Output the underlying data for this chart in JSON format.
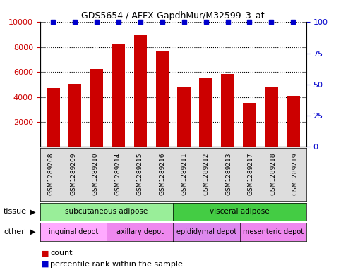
{
  "title": "GDS5654 / AFFX-GapdhMur/M32599_3_at",
  "samples": [
    "GSM1289208",
    "GSM1289209",
    "GSM1289210",
    "GSM1289214",
    "GSM1289215",
    "GSM1289216",
    "GSM1289211",
    "GSM1289212",
    "GSM1289213",
    "GSM1289217",
    "GSM1289218",
    "GSM1289219"
  ],
  "counts": [
    4700,
    5050,
    6250,
    8250,
    9000,
    7650,
    4750,
    5500,
    5850,
    3500,
    4850,
    4100
  ],
  "percentiles": [
    100,
    100,
    100,
    100,
    100,
    100,
    100,
    100,
    100,
    100,
    100,
    100
  ],
  "ylim_left": [
    0,
    10000
  ],
  "ylim_right": [
    0,
    100
  ],
  "yticks_left": [
    2000,
    4000,
    6000,
    8000,
    10000
  ],
  "yticks_right": [
    0,
    25,
    50,
    75,
    100
  ],
  "bar_color": "#cc0000",
  "dot_color": "#0000cc",
  "tissue_groups": [
    {
      "label": "subcutaneous adipose",
      "start": 0,
      "end": 6,
      "color": "#99ee99"
    },
    {
      "label": "visceral adipose",
      "start": 6,
      "end": 12,
      "color": "#44cc44"
    }
  ],
  "other_groups": [
    {
      "label": "inguinal depot",
      "start": 0,
      "end": 3,
      "color": "#ffaaff"
    },
    {
      "label": "axillary depot",
      "start": 3,
      "end": 6,
      "color": "#ee88ee"
    },
    {
      "label": "epididymal depot",
      "start": 6,
      "end": 9,
      "color": "#dd88ee"
    },
    {
      "label": "mesenteric depot",
      "start": 9,
      "end": 12,
      "color": "#ee88ee"
    }
  ],
  "legend_count_label": "count",
  "legend_percentile_label": "percentile rank within the sample",
  "tissue_label": "tissue",
  "other_label": "other",
  "bg_color": "#ffffff",
  "tick_label_color_left": "#cc0000",
  "tick_label_color_right": "#0000cc",
  "border_color": "#000000"
}
